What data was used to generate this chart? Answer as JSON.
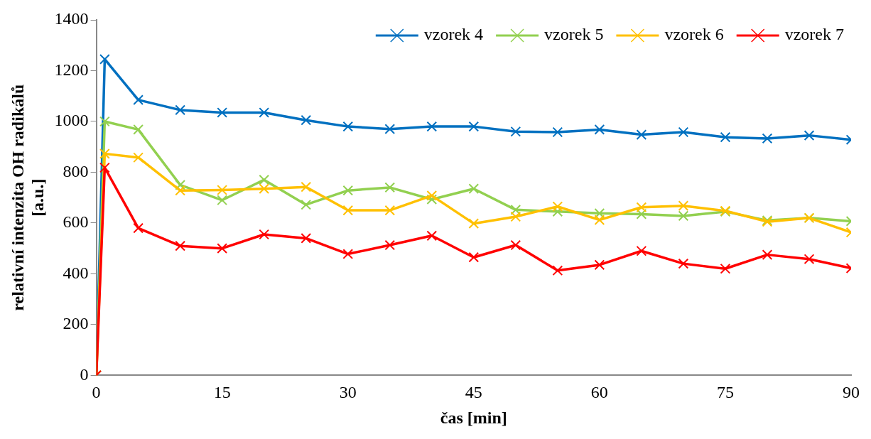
{
  "chart_data": {
    "type": "line",
    "xlabel": "čas [min]",
    "ylabel": "relativní intenzita OH radikálů [a.u.]",
    "x": [
      0,
      1,
      5,
      10,
      15,
      20,
      25,
      30,
      35,
      40,
      45,
      50,
      55,
      60,
      65,
      70,
      75,
      80,
      85,
      90
    ],
    "series": [
      {
        "name": "vzorek 4",
        "color": "#0070c0",
        "values": [
          0,
          1245,
          1085,
          1045,
          1035,
          1035,
          1005,
          980,
          970,
          980,
          980,
          960,
          958,
          968,
          948,
          958,
          938,
          933,
          945,
          928
        ]
      },
      {
        "name": "vzorek 5",
        "color": "#92d050",
        "values": [
          0,
          1000,
          968,
          750,
          690,
          770,
          672,
          728,
          740,
          693,
          735,
          652,
          645,
          638,
          635,
          628,
          645,
          610,
          620,
          607
        ]
      },
      {
        "name": "vzorek 6",
        "color": "#ffc000",
        "values": [
          0,
          873,
          858,
          728,
          730,
          735,
          742,
          650,
          650,
          708,
          598,
          625,
          665,
          612,
          662,
          668,
          648,
          605,
          620,
          563
        ]
      },
      {
        "name": "vzorek 7",
        "color": "#ff0000",
        "values": [
          0,
          818,
          580,
          510,
          500,
          555,
          540,
          478,
          513,
          550,
          465,
          513,
          413,
          435,
          490,
          440,
          420,
          475,
          458,
          422
        ]
      }
    ],
    "xlim": [
      0,
      90
    ],
    "xticks": [
      0,
      15,
      30,
      45,
      60,
      75,
      90
    ],
    "ylim": [
      0,
      1400
    ],
    "yticks": [
      0,
      200,
      400,
      600,
      800,
      1000,
      1200,
      1400
    ],
    "grid": false,
    "legend": "top right",
    "marker": "cross",
    "line_style": "solid"
  }
}
